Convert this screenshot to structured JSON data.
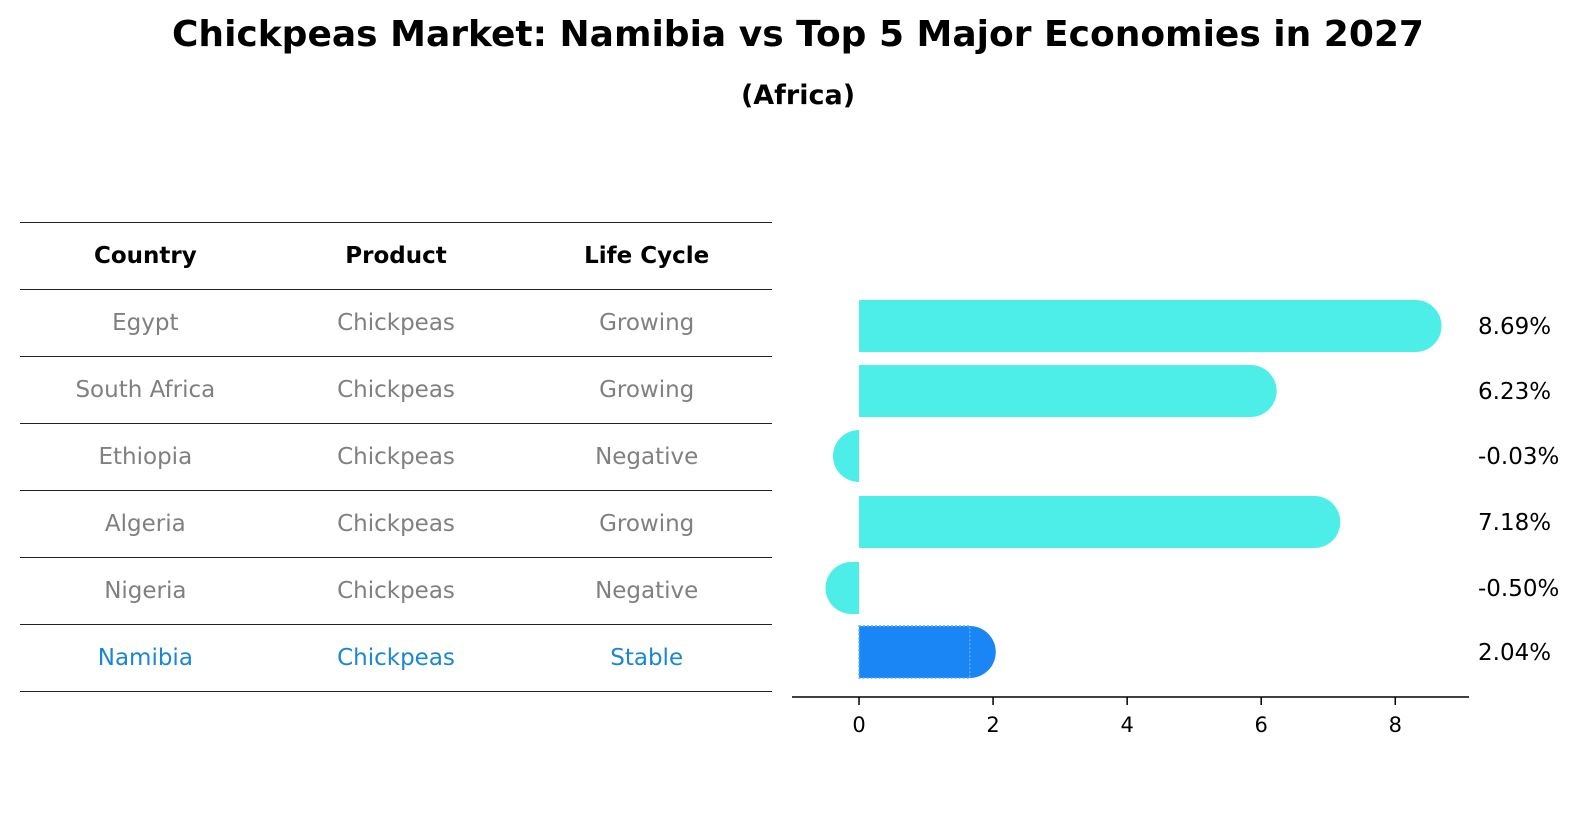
{
  "title": "Chickpeas Market: Namibia vs Top 5 Major Economies in 2027",
  "subtitle": "(Africa)",
  "table": {
    "columns": [
      "Country",
      "Product",
      "Life Cycle"
    ],
    "rows": [
      [
        "Egypt",
        "Chickpeas",
        "Growing"
      ],
      [
        "South Africa",
        "Chickpeas",
        "Growing"
      ],
      [
        "Ethiopia",
        "Chickpeas",
        "Negative"
      ],
      [
        "Algeria",
        "Chickpeas",
        "Growing"
      ],
      [
        "Nigeria",
        "Chickpeas",
        "Negative"
      ],
      [
        "Namibia",
        "Chickpeas",
        "Stable"
      ]
    ],
    "highlight_row": 5
  },
  "colors": {
    "bar": "#4dede8",
    "highlight_bar": "#1a86f5",
    "highlight_text": "#1a86d6",
    "muted_text": "#808080"
  },
  "chart_data": {
    "type": "bar",
    "orientation": "horizontal",
    "categories": [
      "Egypt",
      "South Africa",
      "Ethiopia",
      "Algeria",
      "Nigeria",
      "Namibia"
    ],
    "values": [
      8.69,
      6.23,
      -0.03,
      7.18,
      -0.5,
      2.04
    ],
    "value_labels": [
      "8.69%",
      "6.23%",
      "-0.03%",
      "7.18%",
      "-0.50%",
      "2.04%"
    ],
    "xlim": [
      -1,
      9.1
    ],
    "xticks": [
      0,
      2,
      4,
      6,
      8
    ],
    "highlight_index": 5,
    "grid": false
  }
}
